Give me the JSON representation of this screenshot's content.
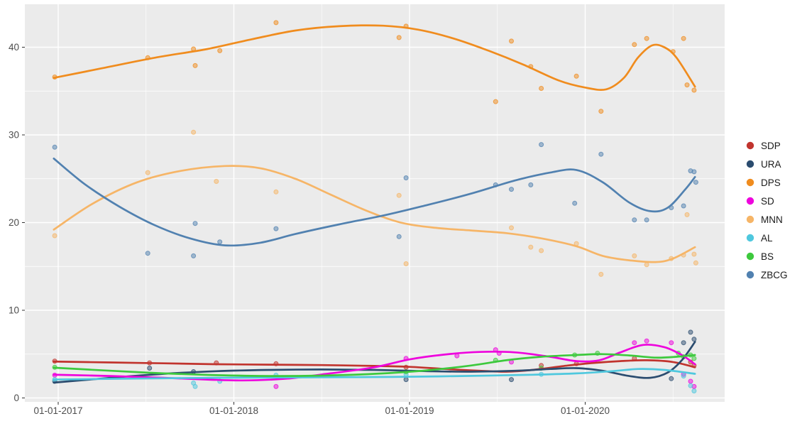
{
  "chart_data": {
    "type": "scatter",
    "subtype": "scatter-with-loess-smooth",
    "title": "",
    "xlabel": "",
    "ylabel": "",
    "grid": true,
    "legend_position": "right",
    "colors": {
      "panel_background": "#ebebeb",
      "outer_background": "#ffffff",
      "gridline": "#ffffff",
      "axis_text": "#4d4d4d",
      "tick_mark": "#333333",
      "legend_text": "#1a1a1a"
    },
    "x_axis": {
      "tick_labels": [
        "01-01-2017",
        "01-01-2018",
        "01-01-2019",
        "01-01-2020"
      ],
      "tick_values": [
        2017,
        2018,
        2019,
        2020
      ],
      "minor_tick_values": [
        2017.5,
        2018.5,
        2019.5,
        2020.5
      ],
      "range": [
        2016.81,
        2020.79
      ]
    },
    "y_axis": {
      "tick_labels": [
        "0",
        "10",
        "20",
        "30",
        "40"
      ],
      "tick_values": [
        0,
        10,
        20,
        30,
        40
      ],
      "minor_tick_values": [
        5,
        15,
        25,
        35
      ],
      "range": [
        -0.45,
        44.9
      ]
    },
    "series": [
      {
        "name": "SDP",
        "color": "#c1342e",
        "points": [
          [
            2016.98,
            4.2
          ],
          [
            2017.52,
            4.0
          ],
          [
            2017.9,
            4.0
          ],
          [
            2018.24,
            3.9
          ],
          [
            2018.98,
            3.5
          ],
          [
            2019.75,
            3.7
          ],
          [
            2019.95,
            3.9
          ],
          [
            2020.28,
            4.5
          ],
          [
            2020.6,
            4.1
          ],
          [
            2020.62,
            3.7
          ]
        ],
        "smooth_line": [
          [
            2016.975,
            4.15
          ],
          [
            2017.3,
            4.05
          ],
          [
            2017.6,
            3.95
          ],
          [
            2017.9,
            3.85
          ],
          [
            2018.2,
            3.8
          ],
          [
            2018.5,
            3.75
          ],
          [
            2018.8,
            3.65
          ],
          [
            2019.0,
            3.55
          ],
          [
            2019.2,
            3.3
          ],
          [
            2019.4,
            3.1
          ],
          [
            2019.55,
            3.0
          ],
          [
            2019.7,
            3.2
          ],
          [
            2019.9,
            3.7
          ],
          [
            2020.05,
            4.0
          ],
          [
            2020.2,
            4.2
          ],
          [
            2020.35,
            4.3
          ],
          [
            2020.5,
            4.1
          ],
          [
            2020.625,
            3.5
          ]
        ]
      },
      {
        "name": "URA",
        "color": "#2b4c6f",
        "points": [
          [
            2016.98,
            1.9
          ],
          [
            2017.52,
            3.4
          ],
          [
            2017.77,
            3.0
          ],
          [
            2018.98,
            2.1
          ],
          [
            2019.58,
            2.1
          ],
          [
            2020.49,
            2.2
          ],
          [
            2020.56,
            6.3
          ],
          [
            2020.6,
            7.5
          ],
          [
            2020.62,
            6.7
          ]
        ],
        "smooth_line": [
          [
            2016.975,
            1.75
          ],
          [
            2017.3,
            2.3
          ],
          [
            2017.6,
            2.75
          ],
          [
            2017.9,
            3.05
          ],
          [
            2018.2,
            3.2
          ],
          [
            2018.5,
            3.25
          ],
          [
            2018.8,
            3.2
          ],
          [
            2019.1,
            3.05
          ],
          [
            2019.35,
            3.0
          ],
          [
            2019.6,
            3.1
          ],
          [
            2019.8,
            3.3
          ],
          [
            2019.95,
            3.4
          ],
          [
            2020.1,
            3.1
          ],
          [
            2020.25,
            2.5
          ],
          [
            2020.37,
            2.3
          ],
          [
            2020.47,
            2.9
          ],
          [
            2020.55,
            4.3
          ],
          [
            2020.625,
            6.4
          ]
        ]
      },
      {
        "name": "DPS",
        "color": "#f08c1e",
        "points": [
          [
            2016.98,
            36.6
          ],
          [
            2017.51,
            38.8
          ],
          [
            2017.77,
            39.8
          ],
          [
            2017.78,
            37.9
          ],
          [
            2017.92,
            39.6
          ],
          [
            2018.24,
            42.8
          ],
          [
            2018.94,
            41.1
          ],
          [
            2018.98,
            42.4
          ],
          [
            2019.49,
            33.8
          ],
          [
            2019.58,
            40.7
          ],
          [
            2019.69,
            37.8
          ],
          [
            2019.75,
            35.3
          ],
          [
            2019.95,
            36.7
          ],
          [
            2020.09,
            32.7
          ],
          [
            2020.28,
            40.3
          ],
          [
            2020.35,
            41.0
          ],
          [
            2020.5,
            39.5
          ],
          [
            2020.56,
            41.0
          ],
          [
            2020.58,
            35.7
          ],
          [
            2020.62,
            35.1
          ]
        ],
        "smooth_line": [
          [
            2016.975,
            36.5
          ],
          [
            2017.25,
            37.6
          ],
          [
            2017.55,
            38.8
          ],
          [
            2017.85,
            39.8
          ],
          [
            2018.1,
            40.9
          ],
          [
            2018.35,
            41.9
          ],
          [
            2018.6,
            42.4
          ],
          [
            2018.85,
            42.45
          ],
          [
            2019.05,
            42.0
          ],
          [
            2019.25,
            41.0
          ],
          [
            2019.45,
            39.6
          ],
          [
            2019.65,
            38.0
          ],
          [
            2019.85,
            36.2
          ],
          [
            2020.0,
            35.4
          ],
          [
            2020.12,
            35.2
          ],
          [
            2020.22,
            36.5
          ],
          [
            2020.3,
            38.8
          ],
          [
            2020.38,
            40.2
          ],
          [
            2020.45,
            40.0
          ],
          [
            2020.52,
            38.8
          ],
          [
            2020.625,
            35.5
          ]
        ]
      },
      {
        "name": "SD",
        "color": "#ee03dd",
        "points": [
          [
            2016.98,
            2.6
          ],
          [
            2018.24,
            1.3
          ],
          [
            2018.98,
            4.5
          ],
          [
            2019.27,
            4.8
          ],
          [
            2019.49,
            5.5
          ],
          [
            2019.51,
            5.1
          ],
          [
            2019.58,
            4.1
          ],
          [
            2020.28,
            6.3
          ],
          [
            2020.35,
            6.5
          ],
          [
            2020.49,
            6.3
          ],
          [
            2020.56,
            2.7
          ],
          [
            2020.6,
            1.9
          ],
          [
            2020.62,
            1.3
          ]
        ],
        "smooth_line": [
          [
            2016.975,
            2.65
          ],
          [
            2017.3,
            2.5
          ],
          [
            2017.6,
            2.3
          ],
          [
            2017.85,
            2.1
          ],
          [
            2018.05,
            2.0
          ],
          [
            2018.3,
            2.2
          ],
          [
            2018.55,
            2.8
          ],
          [
            2018.8,
            3.5
          ],
          [
            2019.0,
            4.4
          ],
          [
            2019.2,
            4.95
          ],
          [
            2019.4,
            5.25
          ],
          [
            2019.6,
            5.2
          ],
          [
            2019.8,
            4.7
          ],
          [
            2019.95,
            4.2
          ],
          [
            2020.08,
            4.3
          ],
          [
            2020.2,
            5.2
          ],
          [
            2020.33,
            6.05
          ],
          [
            2020.45,
            5.8
          ],
          [
            2020.55,
            4.9
          ],
          [
            2020.625,
            3.85
          ]
        ]
      },
      {
        "name": "MNN",
        "color": "#f6b567",
        "points": [
          [
            2016.98,
            18.5
          ],
          [
            2017.51,
            25.7
          ],
          [
            2017.77,
            30.3
          ],
          [
            2017.9,
            24.7
          ],
          [
            2018.24,
            23.5
          ],
          [
            2018.94,
            23.1
          ],
          [
            2018.98,
            15.3
          ],
          [
            2019.58,
            19.4
          ],
          [
            2019.69,
            17.2
          ],
          [
            2019.75,
            16.8
          ],
          [
            2019.95,
            17.6
          ],
          [
            2020.09,
            14.1
          ],
          [
            2020.28,
            16.2
          ],
          [
            2020.35,
            15.2
          ],
          [
            2020.49,
            15.9
          ],
          [
            2020.56,
            16.3
          ],
          [
            2020.58,
            20.9
          ],
          [
            2020.62,
            16.4
          ],
          [
            2020.63,
            15.4
          ]
        ],
        "smooth_line": [
          [
            2016.975,
            19.2
          ],
          [
            2017.2,
            22.2
          ],
          [
            2017.45,
            24.6
          ],
          [
            2017.7,
            25.9
          ],
          [
            2017.95,
            26.45
          ],
          [
            2018.15,
            26.2
          ],
          [
            2018.35,
            25.0
          ],
          [
            2018.55,
            23.2
          ],
          [
            2018.75,
            21.4
          ],
          [
            2018.95,
            20.0
          ],
          [
            2019.15,
            19.4
          ],
          [
            2019.35,
            19.1
          ],
          [
            2019.55,
            18.8
          ],
          [
            2019.75,
            18.2
          ],
          [
            2019.95,
            17.3
          ],
          [
            2020.1,
            16.2
          ],
          [
            2020.25,
            15.7
          ],
          [
            2020.4,
            15.5
          ],
          [
            2020.5,
            15.9
          ],
          [
            2020.625,
            17.2
          ]
        ]
      },
      {
        "name": "AL",
        "color": "#4fc8de",
        "points": [
          [
            2016.98,
            2.1
          ],
          [
            2017.77,
            1.7
          ],
          [
            2017.78,
            1.3
          ],
          [
            2017.92,
            1.9
          ],
          [
            2018.24,
            2.6
          ],
          [
            2018.98,
            2.7
          ],
          [
            2019.75,
            2.7
          ],
          [
            2020.56,
            2.5
          ],
          [
            2020.6,
            1.4
          ],
          [
            2020.62,
            0.8
          ]
        ],
        "smooth_line": [
          [
            2016.975,
            2.1
          ],
          [
            2017.4,
            2.2
          ],
          [
            2017.9,
            2.3
          ],
          [
            2018.4,
            2.35
          ],
          [
            2018.9,
            2.4
          ],
          [
            2019.3,
            2.5
          ],
          [
            2019.7,
            2.65
          ],
          [
            2019.95,
            2.8
          ],
          [
            2020.15,
            3.05
          ],
          [
            2020.3,
            3.3
          ],
          [
            2020.45,
            3.2
          ],
          [
            2020.625,
            2.75
          ]
        ]
      },
      {
        "name": "BS",
        "color": "#3dc93d",
        "points": [
          [
            2016.98,
            3.5
          ],
          [
            2018.98,
            3.0
          ],
          [
            2019.49,
            4.3
          ],
          [
            2019.75,
            3.4
          ],
          [
            2019.94,
            4.9
          ],
          [
            2020.07,
            5.1
          ],
          [
            2020.53,
            5.1
          ],
          [
            2020.56,
            4.7
          ],
          [
            2020.6,
            4.9
          ],
          [
            2020.62,
            4.5
          ]
        ],
        "smooth_line": [
          [
            2016.975,
            3.45
          ],
          [
            2017.3,
            3.1
          ],
          [
            2017.6,
            2.8
          ],
          [
            2017.9,
            2.6
          ],
          [
            2018.2,
            2.5
          ],
          [
            2018.5,
            2.55
          ],
          [
            2018.8,
            2.75
          ],
          [
            2019.1,
            3.15
          ],
          [
            2019.35,
            3.7
          ],
          [
            2019.55,
            4.3
          ],
          [
            2019.75,
            4.7
          ],
          [
            2019.95,
            4.9
          ],
          [
            2020.1,
            5.0
          ],
          [
            2020.25,
            4.85
          ],
          [
            2020.4,
            4.6
          ],
          [
            2020.52,
            4.7
          ],
          [
            2020.625,
            4.9
          ]
        ]
      },
      {
        "name": "ZBCG",
        "color": "#5181b0",
        "points": [
          [
            2016.98,
            28.6
          ],
          [
            2017.51,
            16.5
          ],
          [
            2017.77,
            16.2
          ],
          [
            2017.78,
            19.9
          ],
          [
            2017.92,
            17.8
          ],
          [
            2018.24,
            19.3
          ],
          [
            2018.94,
            18.4
          ],
          [
            2018.98,
            25.1
          ],
          [
            2019.49,
            24.3
          ],
          [
            2019.58,
            23.8
          ],
          [
            2019.69,
            24.3
          ],
          [
            2019.75,
            28.9
          ],
          [
            2019.94,
            22.2
          ],
          [
            2020.09,
            27.8
          ],
          [
            2020.28,
            20.3
          ],
          [
            2020.35,
            20.3
          ],
          [
            2020.49,
            21.7
          ],
          [
            2020.56,
            21.9
          ],
          [
            2020.6,
            25.9
          ],
          [
            2020.62,
            25.8
          ],
          [
            2020.63,
            24.6
          ]
        ],
        "smooth_line": [
          [
            2016.975,
            27.3
          ],
          [
            2017.15,
            24.4
          ],
          [
            2017.35,
            21.8
          ],
          [
            2017.55,
            19.7
          ],
          [
            2017.75,
            18.2
          ],
          [
            2017.95,
            17.4
          ],
          [
            2018.15,
            17.7
          ],
          [
            2018.35,
            18.7
          ],
          [
            2018.6,
            19.8
          ],
          [
            2018.85,
            20.8
          ],
          [
            2019.1,
            22.0
          ],
          [
            2019.35,
            23.3
          ],
          [
            2019.6,
            24.8
          ],
          [
            2019.8,
            25.7
          ],
          [
            2019.95,
            26.0
          ],
          [
            2020.1,
            24.6
          ],
          [
            2020.25,
            22.3
          ],
          [
            2020.37,
            21.3
          ],
          [
            2020.47,
            21.7
          ],
          [
            2020.57,
            23.8
          ],
          [
            2020.625,
            25.2
          ]
        ]
      }
    ],
    "legend": {
      "items": [
        "SDP",
        "URA",
        "DPS",
        "SD",
        "MNN",
        "AL",
        "BS",
        "ZBCG"
      ]
    }
  }
}
